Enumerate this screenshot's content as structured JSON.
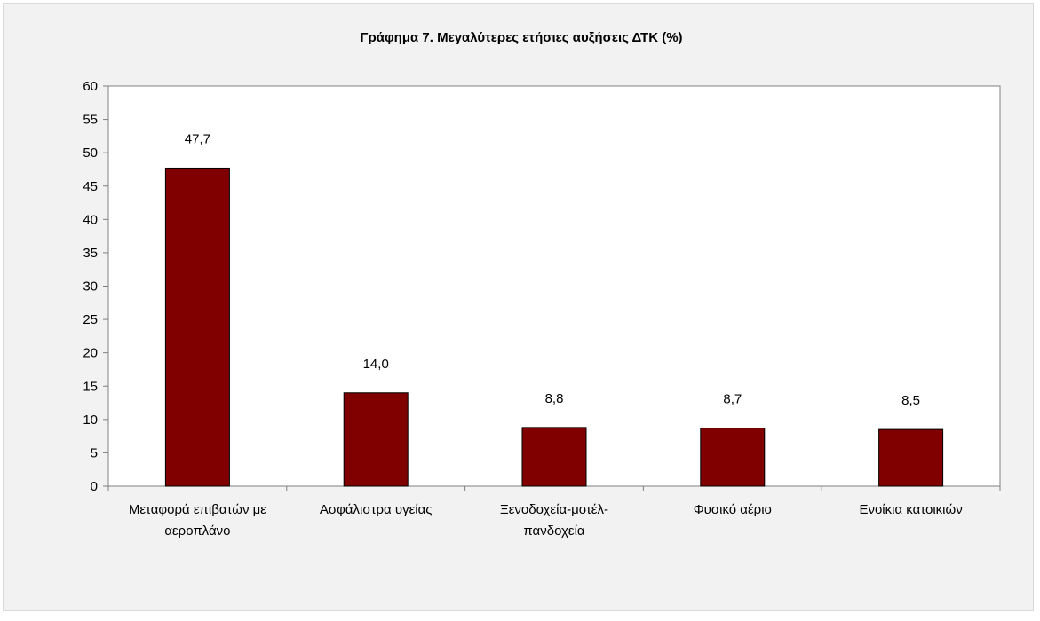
{
  "chart_data": {
    "type": "bar",
    "title": "Γράφημα 7. Μεγαλύτερες ετήσιες αυξήσεις ΔΤΚ (%)",
    "xlabel": "",
    "ylabel": "",
    "categories": [
      [
        "Μεταφορά επιβατών με",
        "αεροπλάνο"
      ],
      [
        "Ασφάλιστρα υγείας"
      ],
      [
        "Ξενοδοχεία-μοτέλ-",
        "πανδοχεία"
      ],
      [
        "Φυσικό αέριο"
      ],
      [
        "Ενοίκια κατοικιών"
      ]
    ],
    "values": [
      47.7,
      14.0,
      8.8,
      8.7,
      8.5
    ],
    "value_labels": [
      "47,7",
      "14,0",
      "8,8",
      "8,7",
      "8,5"
    ],
    "ylim": [
      0,
      60
    ],
    "yticks": [
      0,
      5,
      10,
      15,
      20,
      25,
      30,
      35,
      40,
      45,
      50,
      55,
      60
    ],
    "grid": false,
    "colors": {
      "bar": "#800000",
      "bar_stroke": "#000000",
      "axis": "#808080",
      "plot_bg": "#ffffff",
      "chart_bg": "#f2f2f2"
    }
  }
}
